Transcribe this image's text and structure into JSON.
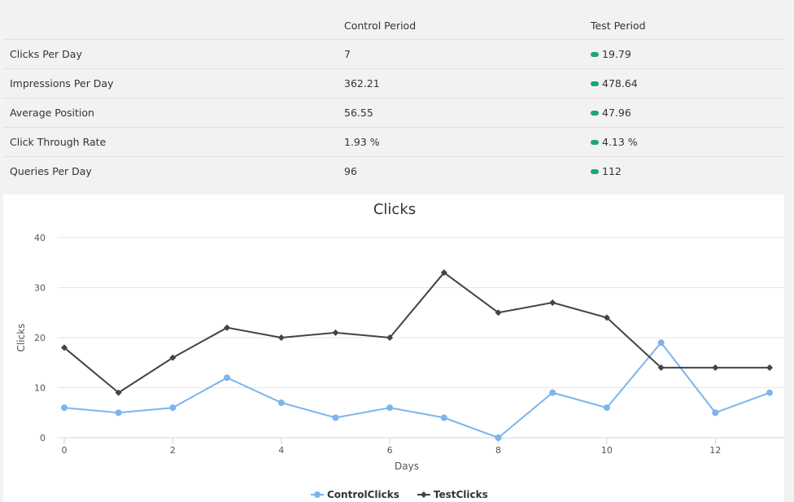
{
  "stats": {
    "headers": [
      "",
      "Control Period",
      "Test Period"
    ],
    "rows": [
      {
        "metric": "Clicks Per Day",
        "control": "7",
        "test": "19.79"
      },
      {
        "metric": "Impressions Per Day",
        "control": "362.21",
        "test": "478.64"
      },
      {
        "metric": "Average Position",
        "control": "56.55",
        "test": "47.96"
      },
      {
        "metric": "Click Through Rate",
        "control": "1.93 %",
        "test": "4.13 %"
      },
      {
        "metric": "Queries Per Day",
        "control": "96",
        "test": "112"
      }
    ],
    "badge_color": "#1aa67a"
  },
  "chart_data": {
    "type": "line",
    "title": "Clicks",
    "xlabel": "Days",
    "ylabel": "Clicks",
    "x": [
      0,
      1,
      2,
      3,
      4,
      5,
      6,
      7,
      8,
      9,
      10,
      11,
      12,
      13
    ],
    "x_ticks": [
      "0",
      "2",
      "4",
      "6",
      "8",
      "10",
      "12"
    ],
    "y_ticks": [
      "0",
      "10",
      "20",
      "30",
      "40"
    ],
    "xlim": [
      0,
      13
    ],
    "ylim": [
      0,
      40
    ],
    "grid": true,
    "legend_position": "bottom-center",
    "series": [
      {
        "name": "ControlClicks",
        "color": "#7cb5ec",
        "marker": "circle",
        "values": [
          6,
          5,
          6,
          12,
          7,
          4,
          6,
          4,
          0,
          9,
          6,
          19,
          5,
          9
        ]
      },
      {
        "name": "TestClicks",
        "color": "#434348",
        "marker": "diamond",
        "values": [
          18,
          9,
          16,
          22,
          20,
          21,
          20,
          33,
          25,
          27,
          24,
          14,
          14,
          14
        ]
      }
    ]
  }
}
